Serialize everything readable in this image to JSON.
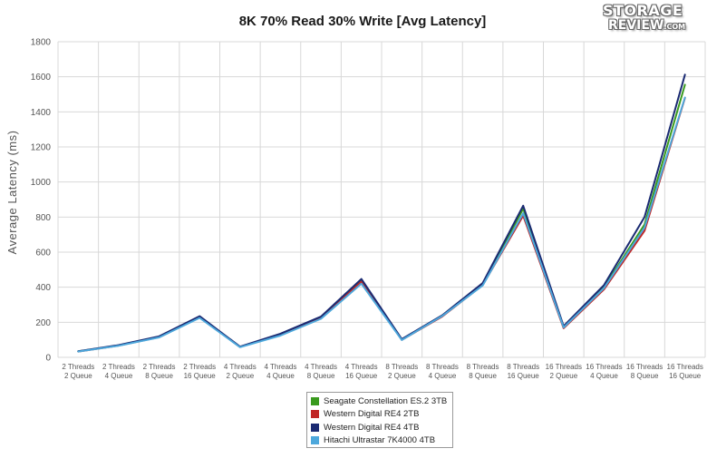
{
  "logo": {
    "line1": "STORAGE",
    "line2": "REVIEW",
    "suffix": ".COM"
  },
  "chart_data": {
    "type": "line",
    "title": "8K 70% Read 30% Write [Avg Latency]",
    "xlabel": "",
    "ylabel": "Average Latency (ms)",
    "ylim": [
      0,
      1800
    ],
    "yticks": [
      0,
      200,
      400,
      600,
      800,
      1000,
      1200,
      1400,
      1600,
      1800
    ],
    "grid": true,
    "legend_placement": "bottom-center",
    "categories": [
      [
        "2 Threads",
        "2 Queue"
      ],
      [
        "2 Threads",
        "4 Queue"
      ],
      [
        "2 Threads",
        "8 Queue"
      ],
      [
        "2 Threads",
        "16 Queue"
      ],
      [
        "4 Threads",
        "2 Queue"
      ],
      [
        "4 Threads",
        "4 Queue"
      ],
      [
        "4 Threads",
        "8 Queue"
      ],
      [
        "4 Threads",
        "16 Queue"
      ],
      [
        "8 Threads",
        "2 Queue"
      ],
      [
        "8 Threads",
        "4 Queue"
      ],
      [
        "8 Threads",
        "8 Queue"
      ],
      [
        "8 Threads",
        "16 Queue"
      ],
      [
        "16 Threads",
        "2 Queue"
      ],
      [
        "16 Threads",
        "4 Queue"
      ],
      [
        "16 Threads",
        "8 Queue"
      ],
      [
        "16 Threads",
        "16 Queue"
      ]
    ],
    "series": [
      {
        "name": "Seagate Constellation ES.2 3TB",
        "color": "#3a9a1e",
        "values": [
          34,
          68,
          118,
          230,
          60,
          128,
          228,
          440,
          102,
          238,
          418,
          848,
          172,
          400,
          758,
          1555
        ]
      },
      {
        "name": "Western Digital RE4 2TB",
        "color": "#c02626",
        "values": [
          33,
          67,
          115,
          228,
          59,
          130,
          225,
          432,
          100,
          233,
          412,
          808,
          166,
          388,
          722,
          1480
        ]
      },
      {
        "name": "Western Digital RE4 4TB",
        "color": "#1a2a72",
        "values": [
          35,
          70,
          120,
          235,
          61,
          135,
          232,
          447,
          104,
          240,
          424,
          865,
          178,
          412,
          800,
          1612
        ]
      },
      {
        "name": "Hitachi Ultrastar 7K4000 4TB",
        "color": "#4da8dc",
        "values": [
          33,
          66,
          114,
          225,
          58,
          124,
          220,
          420,
          99,
          236,
          410,
          822,
          170,
          395,
          740,
          1482
        ]
      }
    ]
  }
}
